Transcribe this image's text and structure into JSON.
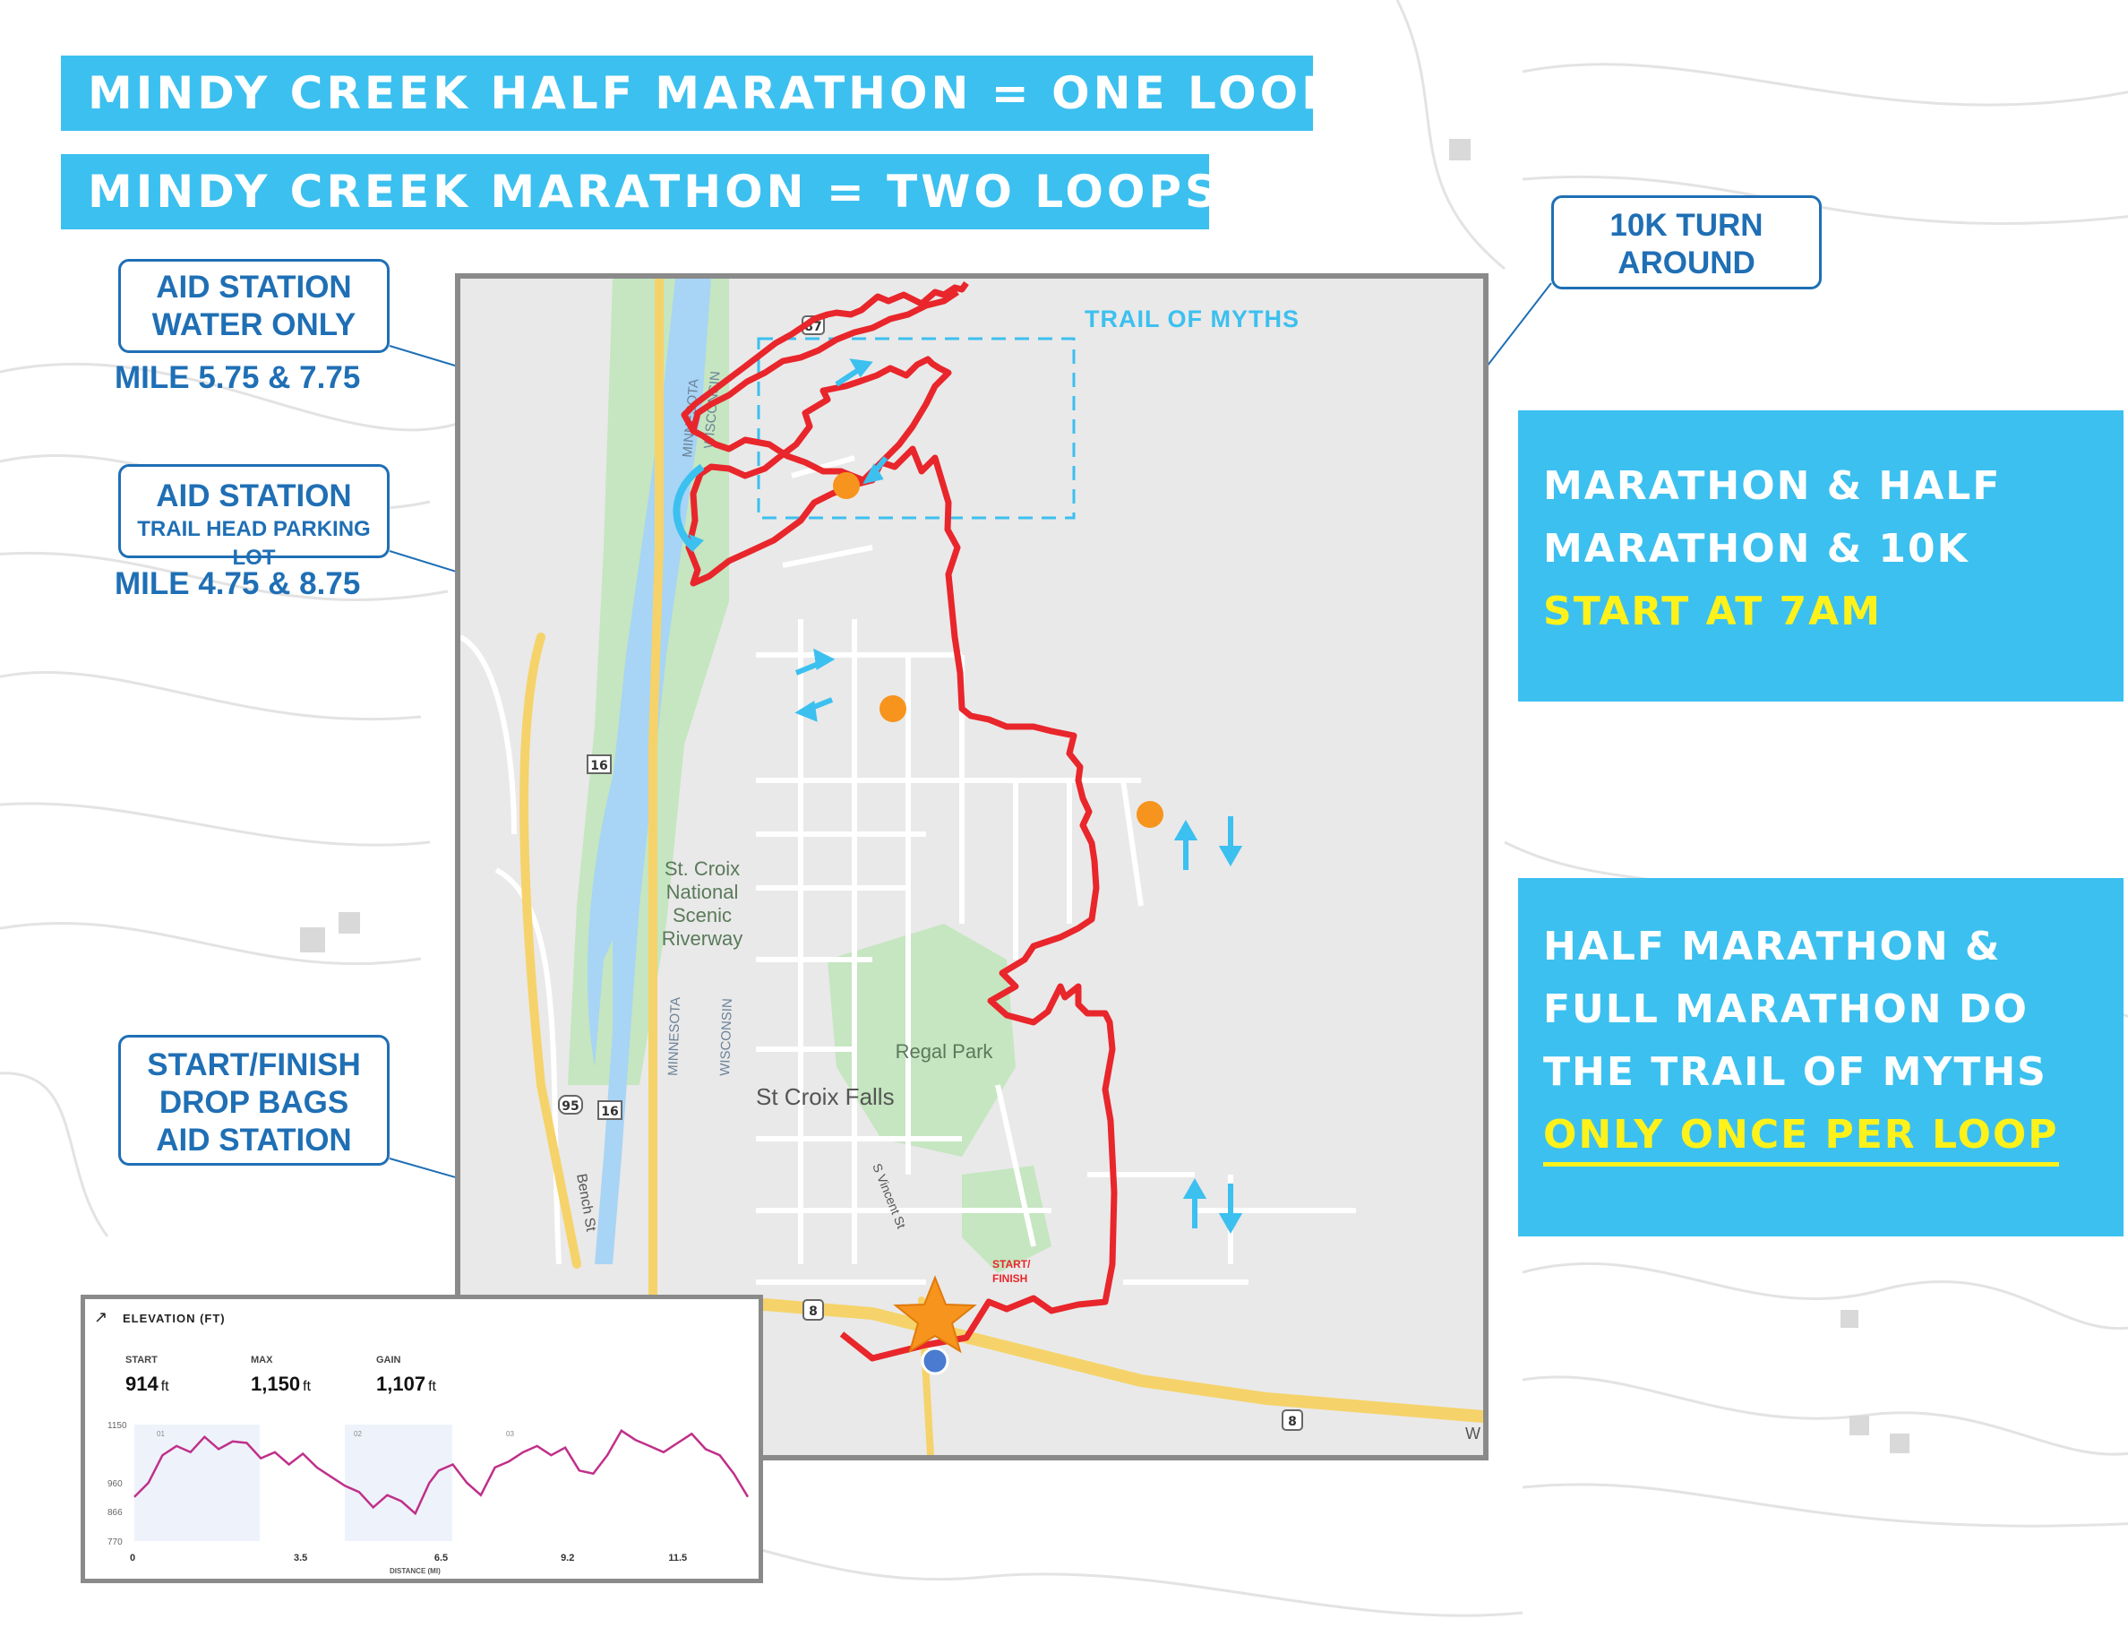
{
  "banners": {
    "half": "MINDY CREEK HALF MARATHON = ONE LOOP",
    "full": "MINDY CREEK MARATHON = TWO LOOPS"
  },
  "callouts": {
    "aid_water": {
      "line1": "AID STATION",
      "line2": "WATER ONLY",
      "mile": "MILE 5.75 & 7.75"
    },
    "aid_trailhead": {
      "line1": "AID STATION",
      "line2": "TRAIL HEAD PARKING LOT",
      "mile": "MILE 4.75 & 8.75"
    },
    "start_finish": {
      "line1": "START/FINISH",
      "line2": "DROP BAGS",
      "line3": "AID STATION"
    },
    "turnaround": {
      "line1": "10K TURN",
      "line2": "AROUND"
    }
  },
  "info_start": {
    "line1": "MARATHON & HALF",
    "line2": "MARATHON & 10K",
    "highlight": "START AT 7AM"
  },
  "info_trail": {
    "line1": "HALF MARATHON &",
    "line2": "FULL MARATHON DO",
    "line3": "THE TRAIL OF MYTHS",
    "highlight": "ONLY ONCE PER LOOP"
  },
  "map": {
    "trail_label": "TRAIL OF MYTHS",
    "river_label_1": "MINNESOTA",
    "river_label_2": "WISCONSIN",
    "park_label_1": "St. Croix",
    "park_label_2": "National",
    "park_label_3": "Scenic",
    "park_label_4": "Riverway",
    "regal_park": "Regal Park",
    "town": "St Croix Falls",
    "street_vincent": "S Vincent St",
    "street_bench": "Bench St",
    "start_label_1": "START/",
    "start_label_2": "FINISH",
    "shield_87": "87",
    "shield_16a": "16",
    "shield_16b": "16",
    "shield_95": "95",
    "shield_8a": "8",
    "shield_8b": "8",
    "edge_w": "W",
    "colors": {
      "route": "#e8262b",
      "aid": "#f7941d",
      "water": "#a8d4f5",
      "park": "#c5e6c0",
      "road": "#f5d36a",
      "accent": "#3cc0ef"
    }
  },
  "elevation": {
    "title": "ELEVATION (FT)",
    "start_label": "START",
    "start_value": "914",
    "start_unit": "ft",
    "max_label": "MAX",
    "max_value": "1,150",
    "max_unit": "ft",
    "gain_label": "GAIN",
    "gain_value": "1,107",
    "gain_unit": "ft",
    "y_ticks": [
      "1150",
      "960",
      "866",
      "770"
    ],
    "x_ticks": [
      "0",
      "3.5",
      "6.5",
      "9.2",
      "11.5"
    ],
    "x_label": "DISTANCE (MI)",
    "segment_labels": [
      "01",
      "02",
      "03"
    ]
  },
  "chart_data": {
    "type": "line",
    "title": "ELEVATION (FT)",
    "xlabel": "DISTANCE (MI)",
    "ylabel": "",
    "ylim": [
      770,
      1150
    ],
    "xlim": [
      0,
      13.1
    ],
    "series": [
      {
        "x": [
          0,
          0.3,
          0.6,
          0.9,
          1.2,
          1.5,
          1.8,
          2.1,
          2.4,
          2.7,
          3.0,
          3.3,
          3.6,
          3.9,
          4.2,
          4.5,
          4.8,
          5.1,
          5.4,
          5.7,
          6.0,
          6.3,
          6.5,
          6.8,
          7.1,
          7.4,
          7.7,
          8.0,
          8.3,
          8.6,
          8.9,
          9.2,
          9.5,
          9.8,
          10.1,
          10.4,
          10.7,
          11.0,
          11.3,
          11.6,
          11.9,
          12.2,
          12.5,
          12.8,
          13.1
        ],
        "values": [
          914,
          960,
          1050,
          1080,
          1060,
          1110,
          1070,
          1095,
          1090,
          1040,
          1060,
          1020,
          1055,
          1010,
          980,
          950,
          930,
          880,
          920,
          900,
          860,
          960,
          1000,
          1020,
          960,
          920,
          1010,
          1030,
          1060,
          1080,
          1050,
          1075,
          1000,
          990,
          1050,
          1130,
          1100,
          1080,
          1060,
          1090,
          1120,
          1070,
          1050,
          990,
          914
        ]
      }
    ]
  }
}
